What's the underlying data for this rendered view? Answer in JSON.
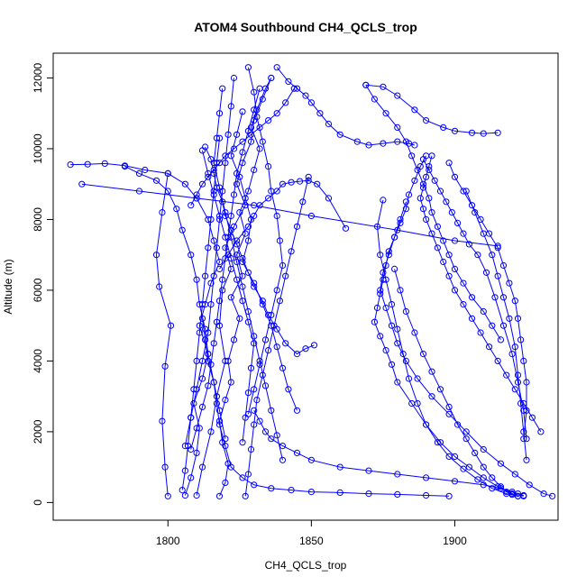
{
  "chart_data": {
    "type": "scatter",
    "title": "ATOM4 Southbound CH4_QCLS_trop",
    "xlabel": "CH4_QCLS_trop",
    "ylabel": "Altitude (m)",
    "xlim": [
      1760,
      1936
    ],
    "ylim": [
      -500,
      12700
    ],
    "xticks": [
      1800,
      1850,
      1900
    ],
    "yticks": [
      0,
      2000,
      4000,
      6000,
      8000,
      10000,
      12000
    ],
    "grid": false,
    "legend": "none",
    "marker": "open-circle",
    "colors": {
      "series": "#0000ff",
      "axis": "#000000"
    },
    "series": [
      {
        "x": [
          1818,
          1820,
          1821,
          1819,
          1818,
          1820,
          1822,
          1821,
          1823,
          1825,
          1822,
          1826,
          1824,
          1827,
          1825,
          1828,
          1830,
          1832,
          1829,
          1831,
          1834,
          1836
        ],
        "y": [
          180,
          560,
          1100,
          1700,
          2300,
          2900,
          3400,
          4000,
          4600,
          5200,
          5800,
          6400,
          7000,
          7600,
          8200,
          8800,
          9400,
          10000,
          10600,
          11100,
          11700,
          12000
        ]
      },
      {
        "x": [
          1836,
          1833,
          1830,
          1829,
          1826,
          1824,
          1827,
          1823,
          1820,
          1822,
          1819,
          1818,
          1820,
          1817,
          1815,
          1812,
          1810
        ],
        "y": [
          12000,
          11400,
          10800,
          10200,
          9600,
          9000,
          8400,
          7800,
          7200,
          6600,
          6000,
          5000,
          4000,
          3000,
          2000,
          1000,
          200
        ]
      },
      {
        "x": [
          1806,
          1808,
          1810,
          1811,
          1809,
          1812,
          1814,
          1813,
          1811,
          1810,
          1808,
          1805,
          1803,
          1800,
          1796,
          1790,
          1785
        ],
        "y": [
          200,
          700,
          1400,
          2100,
          2800,
          3500,
          4200,
          4900,
          5600,
          6300,
          7000,
          7700,
          8300,
          8800,
          9100,
          9300,
          9500
        ]
      },
      {
        "x": [
          1766,
          1772,
          1778,
          1785,
          1792,
          1800,
          1806,
          1810,
          1814,
          1816,
          1818,
          1815,
          1813,
          1811,
          1814,
          1816,
          1818,
          1820
        ],
        "y": [
          9550,
          9560,
          9580,
          9520,
          9400,
          9300,
          9000,
          8600,
          8000,
          7400,
          6800,
          6200,
          5600,
          5000,
          4200,
          3400,
          2600,
          1800
        ]
      },
      {
        "x": [
          1800,
          1799,
          1798,
          1799,
          1801,
          1797,
          1796,
          1798,
          1800
        ],
        "y": [
          180,
          1000,
          2300,
          3850,
          5000,
          6100,
          7000,
          8200,
          9300
        ]
      },
      {
        "x": [
          1770,
          1790,
          1810,
          1830,
          1850,
          1880,
          1900,
          1915
        ],
        "y": [
          9000,
          8800,
          8600,
          8400,
          8100,
          7700,
          7400,
          7250
        ]
      },
      {
        "x": [
          1826,
          1824,
          1822,
          1825,
          1827,
          1829,
          1828,
          1826,
          1830,
          1833,
          1836,
          1838,
          1840,
          1842,
          1845
        ],
        "y": [
          11050,
          10400,
          9800,
          9200,
          8600,
          8000,
          7400,
          6800,
          6200,
          5600,
          5000,
          4400,
          3800,
          3200,
          2600
        ]
      },
      {
        "x": [
          1818,
          1821,
          1824,
          1828,
          1830,
          1832,
          1835,
          1838,
          1840,
          1843,
          1846,
          1849,
          1852,
          1856,
          1862
        ],
        "y": [
          6600,
          7000,
          7400,
          7800,
          8100,
          8400,
          8600,
          8800,
          9000,
          9050,
          9080,
          9100,
          9000,
          8600,
          7750
        ]
      },
      {
        "x": [
          1813,
          1815,
          1816,
          1817,
          1819,
          1820,
          1822,
          1824,
          1826,
          1828,
          1830,
          1833,
          1835,
          1838,
          1841,
          1845,
          1848,
          1851
        ],
        "y": [
          10050,
          9700,
          9300,
          8900,
          8500,
          8100,
          7700,
          7300,
          6900,
          6500,
          6100,
          5700,
          5300,
          4900,
          4500,
          4200,
          4350,
          4450
        ]
      },
      {
        "x": [
          1838,
          1842,
          1845,
          1848,
          1850,
          1853,
          1856,
          1860,
          1866,
          1870,
          1875,
          1880,
          1884,
          1886
        ],
        "y": [
          12300,
          11900,
          11700,
          11500,
          11300,
          11000,
          10700,
          10400,
          10200,
          10100,
          10150,
          10200,
          10150,
          10100
        ]
      },
      {
        "x": [
          1830,
          1832,
          1834,
          1836,
          1840,
          1845,
          1850,
          1860,
          1870,
          1880,
          1890,
          1900,
          1910,
          1916,
          1920,
          1922,
          1924
        ],
        "y": [
          2600,
          2300,
          2000,
          1800,
          1600,
          1400,
          1200,
          1000,
          900,
          800,
          700,
          600,
          500,
          400,
          300,
          250,
          200
        ]
      },
      {
        "x": [
          1812,
          1813,
          1814,
          1816,
          1817,
          1818,
          1820,
          1822,
          1826,
          1830,
          1836,
          1843,
          1850,
          1860,
          1870,
          1880,
          1890,
          1898
        ],
        "y": [
          5200,
          4600,
          4000,
          3400,
          2800,
          2200,
          1600,
          1000,
          700,
          500,
          400,
          350,
          300,
          280,
          250,
          230,
          200,
          180
        ]
      },
      {
        "x": [
          1869,
          1872,
          1876,
          1880,
          1883,
          1885,
          1887,
          1889,
          1891,
          1892,
          1894,
          1896,
          1898,
          1900,
          1903,
          1906,
          1910,
          1913,
          1916
        ],
        "y": [
          11800,
          11400,
          11000,
          10600,
          10200,
          9800,
          9400,
          9000,
          8600,
          8200,
          7800,
          7400,
          7000,
          6600,
          6200,
          5800,
          5400,
          5000,
          4600
        ]
      },
      {
        "x": [
          1869,
          1875,
          1880,
          1886,
          1890,
          1896,
          1900,
          1906,
          1910,
          1915
        ],
        "y": [
          11800,
          11750,
          11500,
          11100,
          10800,
          10600,
          10500,
          10450,
          10430,
          10450
        ]
      },
      {
        "x": [
          1890,
          1888,
          1886,
          1884,
          1883,
          1881,
          1879,
          1877,
          1876,
          1875,
          1874,
          1873,
          1872,
          1874,
          1876,
          1878,
          1880,
          1885,
          1890,
          1895,
          1900,
          1905,
          1910,
          1915,
          1920,
          1924
        ],
        "y": [
          9800,
          9500,
          9100,
          8700,
          8300,
          7900,
          7500,
          7100,
          6700,
          6300,
          5900,
          5500,
          5100,
          4700,
          4300,
          3900,
          3400,
          2800,
          2200,
          1700,
          1300,
          1000,
          700,
          450,
          250,
          180
        ]
      },
      {
        "x": [
          1892,
          1891,
          1890,
          1889,
          1888,
          1889,
          1890,
          1892,
          1894,
          1896,
          1898,
          1900,
          1903,
          1906,
          1909,
          1912,
          1915,
          1918,
          1921,
          1924,
          1927,
          1930
        ],
        "y": [
          9800,
          9500,
          9200,
          8900,
          8600,
          8300,
          8000,
          7600,
          7200,
          6800,
          6400,
          6000,
          5600,
          5200,
          4800,
          4400,
          4000,
          3600,
          3200,
          2800,
          2400,
          2000
        ]
      },
      {
        "x": [
          1883,
          1881,
          1879,
          1877,
          1875,
          1874,
          1876,
          1878,
          1880,
          1883,
          1887,
          1892,
          1898,
          1904,
          1910,
          1916,
          1921,
          1926,
          1931,
          1934
        ],
        "y": [
          8500,
          8000,
          7500,
          7000,
          6500,
          6000,
          5500,
          5000,
          4500,
          4000,
          3500,
          3000,
          2500,
          2000,
          1500,
          1100,
          800,
          500,
          250,
          180
        ]
      },
      {
        "x": [
          1889,
          1891,
          1893,
          1895,
          1897,
          1899,
          1901,
          1903,
          1905,
          1908,
          1911,
          1914,
          1917,
          1920,
          1922,
          1924,
          1925
        ],
        "y": [
          9700,
          9400,
          9100,
          8800,
          8500,
          8200,
          7900,
          7600,
          7300,
          7000,
          6500,
          5800,
          5000,
          4200,
          3400,
          2600,
          1800
        ]
      },
      {
        "x": [
          1875,
          1873,
          1874,
          1876,
          1878,
          1880,
          1882,
          1884,
          1887,
          1890,
          1894,
          1898,
          1903,
          1908,
          1913,
          1918,
          1922
        ],
        "y": [
          8550,
          7800,
          7000,
          6300,
          5600,
          4900,
          4200,
          3500,
          2800,
          2200,
          1700,
          1300,
          950,
          650,
          400,
          250,
          180
        ]
      },
      {
        "x": [
          1898,
          1900,
          1903,
          1906,
          1909,
          1912,
          1915,
          1917,
          1919,
          1921,
          1922,
          1923,
          1924,
          1925,
          1925,
          1924
        ],
        "y": [
          9600,
          9200,
          8800,
          8400,
          8000,
          7600,
          7200,
          6700,
          6200,
          5700,
          5200,
          4600,
          4000,
          3400,
          2600,
          1800
        ]
      },
      {
        "x": [
          1904,
          1907,
          1910,
          1913,
          1915,
          1917,
          1919,
          1921,
          1922,
          1923,
          1924,
          1925
        ],
        "y": [
          8800,
          8200,
          7600,
          7000,
          6400,
          5800,
          5200,
          4400,
          3600,
          2800,
          2000,
          1200
        ]
      },
      {
        "x": [
          1879,
          1881,
          1883,
          1886,
          1889,
          1892,
          1895,
          1898,
          1901,
          1904,
          1907,
          1910,
          1913,
          1916,
          1918,
          1920,
          1922
        ],
        "y": [
          6600,
          6000,
          5400,
          4800,
          4200,
          3700,
          3200,
          2700,
          2200,
          1800,
          1400,
          1000,
          700,
          450,
          300,
          220,
          180
        ]
      },
      {
        "x": [
          1808,
          1810,
          1812,
          1814,
          1815,
          1816,
          1817,
          1818,
          1819,
          1820,
          1821,
          1822,
          1823,
          1824,
          1826,
          1828,
          1830,
          1832
        ],
        "y": [
          1500,
          2100,
          2700,
          3300,
          3900,
          4500,
          5100,
          5700,
          6300,
          6900,
          7500,
          8100,
          8700,
          9300,
          9900,
          10500,
          11100,
          11700
        ]
      },
      {
        "x": [
          1819,
          1818,
          1817,
          1816,
          1818,
          1820,
          1822,
          1824,
          1826,
          1828,
          1830,
          1832,
          1834,
          1836,
          1838,
          1840
        ],
        "y": [
          11700,
          11000,
          10300,
          9600,
          8900,
          8200,
          7500,
          6800,
          6100,
          5400,
          4700,
          4000,
          3300,
          2600,
          1900,
          1200
        ]
      },
      {
        "x": [
          1823,
          1822,
          1821,
          1820,
          1819,
          1818,
          1817,
          1816,
          1815,
          1814,
          1812,
          1810,
          1808,
          1806
        ],
        "y": [
          12000,
          11200,
          10400,
          9600,
          8800,
          8000,
          7200,
          6400,
          5600,
          4800,
          4000,
          3200,
          2400,
          1600
        ]
      },
      {
        "x": [
          1812,
          1814,
          1816,
          1818,
          1820,
          1822,
          1824,
          1826,
          1828,
          1830,
          1829,
          1828,
          1827,
          1826
        ],
        "y": [
          9950,
          9300,
          8700,
          8100,
          7500,
          6900,
          6300,
          5700,
          5100,
          4500,
          3800,
          3100,
          2400,
          1700
        ]
      },
      {
        "x": [
          1828,
          1830,
          1831,
          1833,
          1835,
          1836,
          1838,
          1839,
          1840,
          1838,
          1836,
          1834,
          1832,
          1830,
          1828
        ],
        "y": [
          12300,
          11600,
          10900,
          10200,
          9500,
          8800,
          8100,
          7400,
          6700,
          6000,
          5300,
          4600,
          3900,
          3200,
          2500
        ]
      },
      {
        "x": [
          1805,
          1806,
          1807,
          1808,
          1809,
          1810,
          1811,
          1812,
          1813,
          1814,
          1815,
          1816,
          1817,
          1818
        ],
        "y": [
          350,
          900,
          1600,
          2400,
          3200,
          4000,
          4800,
          5600,
          6400,
          7200,
          8000,
          8800,
          9600,
          10300
        ]
      },
      {
        "x": [
          1827,
          1828,
          1829,
          1830,
          1831,
          1833,
          1835,
          1837,
          1839,
          1841,
          1843,
          1845,
          1847,
          1849
        ],
        "y": [
          180,
          800,
          1500,
          2200,
          2900,
          3600,
          4300,
          5000,
          5700,
          6400,
          7100,
          7800,
          8500,
          9200
        ]
      },
      {
        "x": [
          1808,
          1810,
          1812,
          1814,
          1816,
          1818,
          1820,
          1823,
          1826,
          1829,
          1832,
          1835,
          1838,
          1841,
          1844
        ],
        "y": [
          8400,
          8700,
          9000,
          9200,
          9400,
          9600,
          9800,
          10000,
          10200,
          10400,
          10600,
          10800,
          11000,
          11300,
          11700
        ]
      }
    ]
  }
}
